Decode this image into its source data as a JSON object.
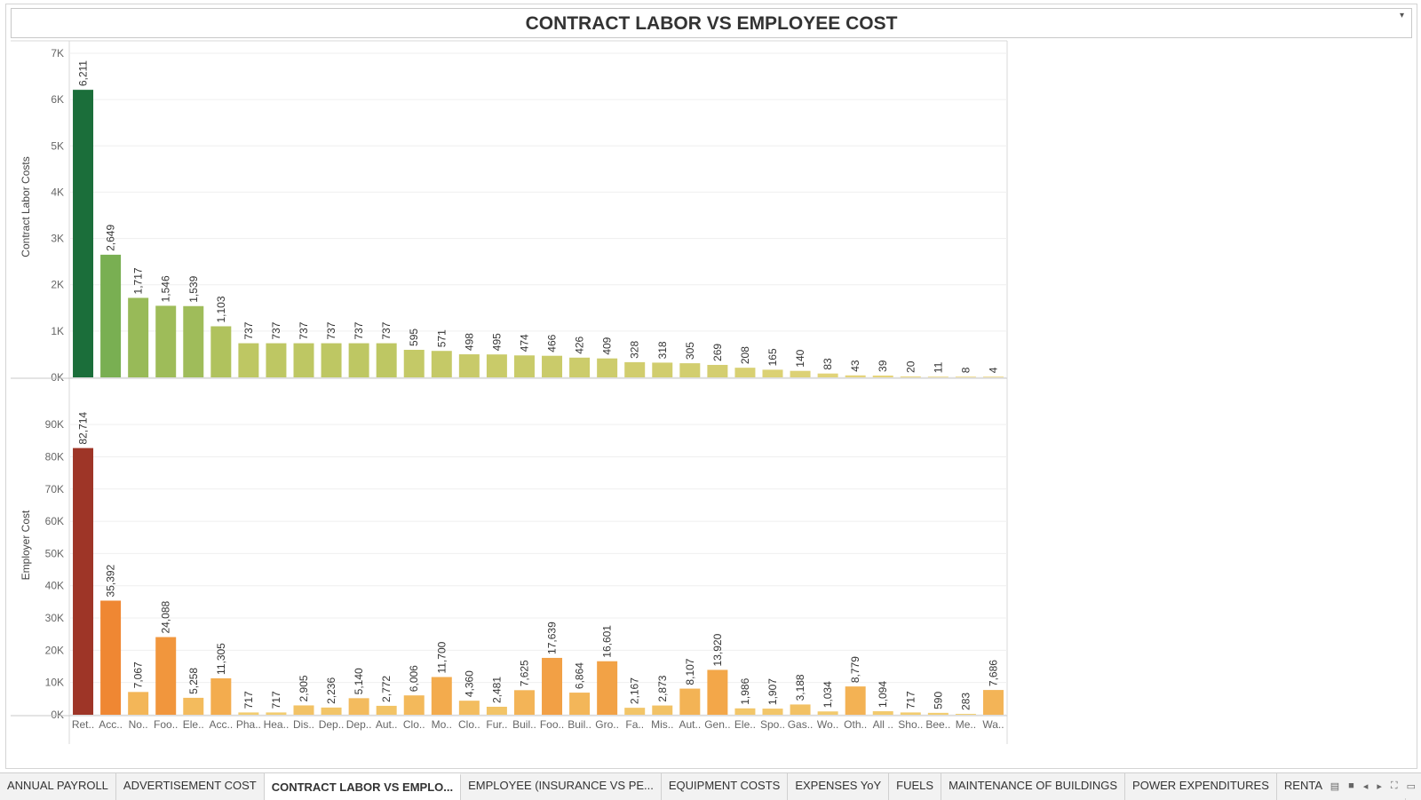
{
  "dashboard": {
    "title": "CONTRACT LABOR VS EMPLOYEE COST"
  },
  "tabs": [
    {
      "label": "ANNUAL PAYROLL",
      "active": false
    },
    {
      "label": "ADVERTISEMENT COST",
      "active": false
    },
    {
      "label": "CONTRACT LABOR VS EMPLO...",
      "active": true
    },
    {
      "label": "EMPLOYEE (INSURANCE VS PE...",
      "active": false
    },
    {
      "label": "EQUIPMENT COSTS",
      "active": false
    },
    {
      "label": "EXPENSES YoY",
      "active": false
    },
    {
      "label": "FUELS",
      "active": false
    },
    {
      "label": "MAINTENANCE OF BUILDINGS",
      "active": false
    },
    {
      "label": "POWER EXPENDITURES",
      "active": false
    },
    {
      "label": "RENTAL PAYMENT M",
      "active": false
    }
  ],
  "tab_controls": [
    "grid-view-icon",
    "single-view-icon",
    "prev-arrow-icon",
    "next-arrow-icon",
    "fullscreen-icon",
    "present-icon"
  ],
  "chart_data": {
    "type": "bar",
    "categories": [
      "Ret..",
      "Acc..",
      "No..",
      "Foo..",
      "Ele..",
      "Acc..",
      "Pha..",
      "Hea..",
      "Dis..",
      "Dep..",
      "Dep..",
      "Aut..",
      "Clo..",
      "Mo..",
      "Clo..",
      "Fur..",
      "Buil..",
      "Foo..",
      "Buil..",
      "Gro..",
      "Fa..",
      "Mis..",
      "Aut..",
      "Gen..",
      "Ele..",
      "Spo..",
      "Gas..",
      "Wo..",
      "Oth..",
      "All ..",
      "Sho..",
      "Bee..",
      "Me..",
      "Wa.."
    ],
    "panels": [
      {
        "ylabel": "Contract Labor Costs",
        "ylim": [
          0,
          7000
        ],
        "yticks": [
          0,
          1000,
          2000,
          3000,
          4000,
          5000,
          6000,
          7000
        ],
        "ytick_labels": [
          "0K",
          "1K",
          "2K",
          "3K",
          "4K",
          "5K",
          "6K",
          "7K"
        ],
        "values": [
          6211,
          2649,
          1717,
          1546,
          1539,
          1103,
          737,
          737,
          737,
          737,
          737,
          737,
          595,
          571,
          498,
          495,
          474,
          466,
          426,
          409,
          328,
          318,
          305,
          269,
          208,
          165,
          140,
          83,
          43,
          39,
          20,
          11,
          8,
          4
        ],
        "value_labels": [
          "6,211",
          "2,649",
          "1,717",
          "1,546",
          "1,539",
          "1,103",
          "737",
          "737",
          "737",
          "737",
          "737",
          "737",
          "595",
          "571",
          "498",
          "495",
          "474",
          "466",
          "426",
          "409",
          "328",
          "318",
          "305",
          "269",
          "208",
          "165",
          "140",
          "83",
          "43",
          "39",
          "20",
          "11",
          "8",
          "4"
        ],
        "color_scale": [
          "#eed77f",
          "#b5c45e",
          "#6aaa4f",
          "#1b6e3a"
        ]
      },
      {
        "ylabel": "Employer Cost",
        "ylim": [
          0,
          95000
        ],
        "yticks": [
          0,
          10000,
          20000,
          30000,
          40000,
          50000,
          60000,
          70000,
          80000,
          90000
        ],
        "ytick_labels": [
          "0K",
          "10K",
          "20K",
          "30K",
          "40K",
          "50K",
          "60K",
          "70K",
          "80K",
          "90K"
        ],
        "values": [
          82714,
          35392,
          7067,
          24088,
          5258,
          11305,
          717,
          717,
          2905,
          2236,
          5140,
          2772,
          6006,
          11700,
          4360,
          2481,
          7625,
          17639,
          6864,
          16601,
          2167,
          2873,
          8107,
          13920,
          1986,
          1907,
          3188,
          1034,
          8779,
          1094,
          717,
          590,
          283,
          7686
        ],
        "value_labels": [
          "82,714",
          "35,392",
          "7,067",
          "24,088",
          "5,258",
          "11,305",
          "717",
          "717",
          "2,905",
          "2,236",
          "5,140",
          "2,772",
          "6,006",
          "11,700",
          "4,360",
          "2,481",
          "7,625",
          "17,639",
          "6,864",
          "16,601",
          "2,167",
          "2,873",
          "8,107",
          "13,920",
          "1,986",
          "1,907",
          "3,188",
          "1,034",
          "8,779",
          "1,094",
          "717",
          "590",
          "283",
          "7,686"
        ],
        "color_scale": [
          "#f2d477",
          "#f3a84a",
          "#ee7f2d",
          "#9e3527"
        ]
      }
    ],
    "grid": true
  }
}
